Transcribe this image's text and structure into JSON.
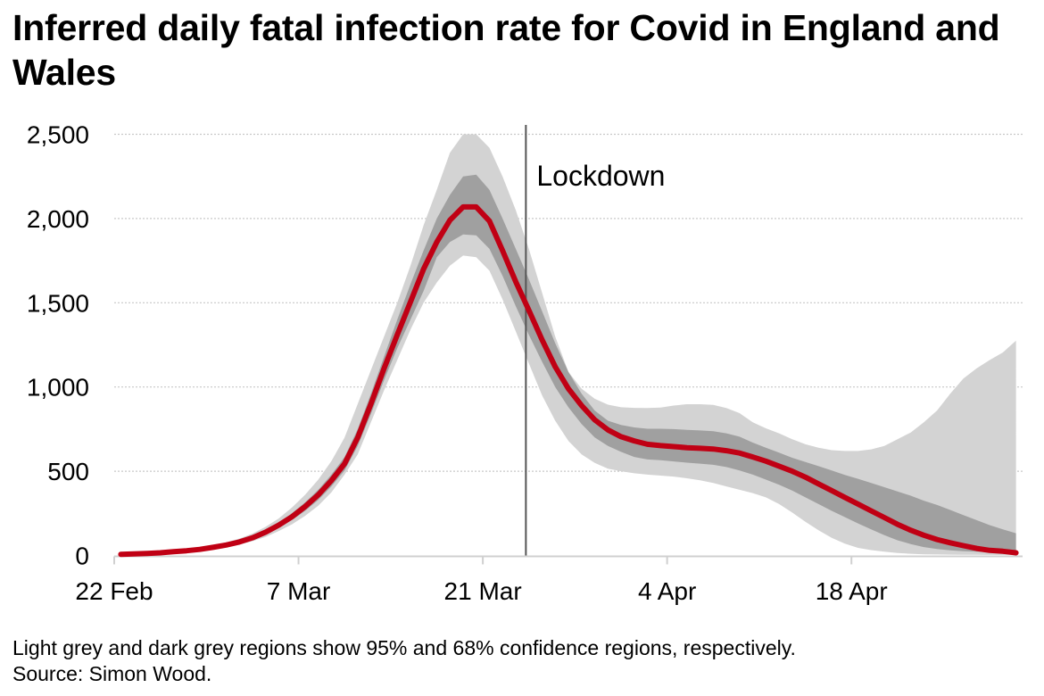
{
  "chart_data": {
    "type": "line",
    "title": "Inferred daily fatal infection rate for Covid in England and Wales",
    "xlabel": "",
    "ylabel": "",
    "start_date": "22 Feb",
    "end_date": "30 Apr",
    "x_unit": "day",
    "ylim": [
      0,
      2500
    ],
    "yticks": [
      0,
      500,
      1000,
      1500,
      2000,
      2500
    ],
    "ytick_labels": [
      "0",
      "500",
      "1,000",
      "1,500",
      "2,000",
      "2,500"
    ],
    "xticks": [
      {
        "day_index": 0,
        "label": "22 Feb"
      },
      {
        "day_index": 14,
        "label": "7 Mar"
      },
      {
        "day_index": 28,
        "label": "21 Mar"
      },
      {
        "day_index": 42,
        "label": "4 Apr"
      },
      {
        "day_index": 56,
        "label": "18 Apr"
      }
    ],
    "grid": "horizontal-dotted",
    "annotations": [
      {
        "label": "Lockdown",
        "day_index": 31,
        "date": "24 Mar",
        "type": "vertical-line"
      }
    ],
    "series": [
      {
        "name": "Inferred daily fatal infections",
        "color": "#c00014",
        "values": [
          7,
          9,
          12,
          16,
          22,
          28,
          36,
          48,
          62,
          80,
          105,
          138,
          180,
          230,
          290,
          360,
          445,
          545,
          700,
          900,
          1110,
          1310,
          1505,
          1700,
          1860,
          1990,
          2069,
          2069,
          1985,
          1810,
          1625,
          1455,
          1280,
          1120,
          990,
          890,
          805,
          745,
          705,
          680,
          660,
          652,
          646,
          640,
          636,
          632,
          622,
          608,
          585,
          560,
          530,
          500,
          465,
          425,
          385,
          345,
          305,
          265,
          225,
          185,
          150,
          120,
          95,
          75,
          58,
          42,
          30,
          25,
          16
        ]
      }
    ],
    "bands": [
      {
        "name": "95% confidence region",
        "color": "#d3d3d3",
        "upper": [
          9,
          11,
          15,
          20,
          27,
          35,
          45,
          60,
          78,
          100,
          130,
          170,
          220,
          285,
          360,
          450,
          560,
          700,
          900,
          1100,
          1300,
          1500,
          1720,
          1960,
          2170,
          2390,
          2500,
          2500,
          2420,
          2250,
          2050,
          1820,
          1560,
          1300,
          1090,
          990,
          930,
          895,
          880,
          876,
          875,
          878,
          890,
          898,
          898,
          894,
          875,
          845,
          790,
          755,
          725,
          690,
          660,
          640,
          625,
          620,
          620,
          630,
          650,
          690,
          730,
          790,
          860,
          960,
          1050,
          1110,
          1160,
          1205,
          1275
        ],
        "lower": [
          5,
          7,
          9,
          12,
          17,
          22,
          28,
          38,
          50,
          64,
          85,
          110,
          145,
          185,
          235,
          295,
          375,
          480,
          600,
          790,
          980,
          1160,
          1340,
          1500,
          1620,
          1720,
          1780,
          1770,
          1690,
          1520,
          1330,
          1140,
          950,
          800,
          680,
          600,
          550,
          515,
          500,
          488,
          480,
          474,
          468,
          458,
          446,
          430,
          410,
          390,
          370,
          345,
          305,
          255,
          200,
          150,
          105,
          70,
          45,
          32,
          22,
          15,
          10,
          7,
          6,
          5,
          4,
          4,
          3,
          3,
          3
        ]
      },
      {
        "name": "68% confidence region",
        "color": "#a0a0a0",
        "upper": [
          8,
          10,
          13,
          18,
          24,
          31,
          40,
          53,
          68,
          88,
          115,
          150,
          195,
          250,
          315,
          390,
          480,
          585,
          750,
          960,
          1180,
          1400,
          1610,
          1810,
          2000,
          2140,
          2250,
          2260,
          2170,
          2000,
          1820,
          1640,
          1450,
          1260,
          1090,
          960,
          860,
          800,
          775,
          760,
          752,
          752,
          750,
          746,
          742,
          738,
          725,
          705,
          670,
          640,
          610,
          580,
          555,
          530,
          505,
          478,
          455,
          430,
          405,
          380,
          355,
          325,
          300,
          270,
          240,
          210,
          180,
          155,
          132
        ],
        "lower": [
          6,
          8,
          11,
          14,
          20,
          25,
          32,
          43,
          56,
          72,
          95,
          125,
          165,
          210,
          265,
          330,
          410,
          505,
          650,
          840,
          1040,
          1230,
          1400,
          1570,
          1770,
          1860,
          1905,
          1900,
          1820,
          1660,
          1480,
          1310,
          1150,
          1000,
          880,
          780,
          700,
          650,
          615,
          585,
          570,
          565,
          558,
          551,
          545,
          538,
          525,
          505,
          480,
          450,
          420,
          385,
          345,
          305,
          265,
          228,
          190,
          155,
          120,
          90,
          68,
          50,
          38,
          30,
          25,
          22,
          20,
          18,
          16
        ]
      }
    ],
    "total_days": 69
  },
  "page": {
    "title": "Inferred daily fatal infection rate for Covid in England and Wales",
    "footnote_line1": "Light grey and dark grey regions show 95% and 68% confidence regions, respectively.",
    "footnote_line2": "Source: Simon Wood."
  }
}
